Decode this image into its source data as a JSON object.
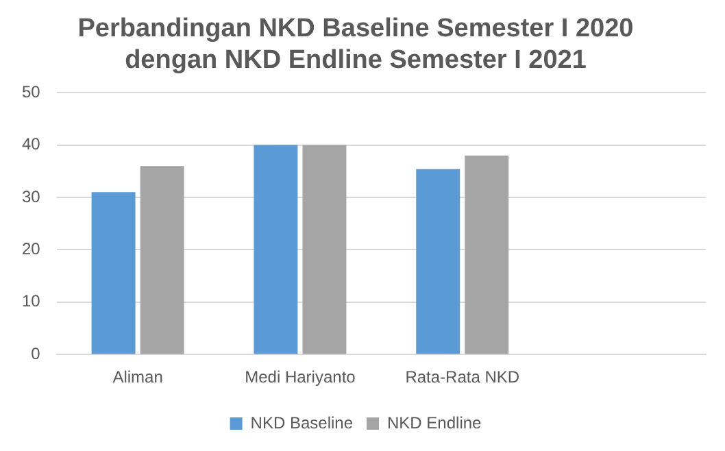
{
  "chart_data": {
    "type": "bar",
    "title": [
      "Perbandingan NKD Baseline Semester I 2020",
      "dengan NKD Endline Semester I 2021"
    ],
    "categories": [
      "Aliman",
      "Medi Hariyanto",
      "Rata-Rata NKD",
      null
    ],
    "series": [
      {
        "name": "NKD Baseline",
        "color": "#5b9bd5",
        "values": [
          31,
          40,
          35.4,
          null
        ]
      },
      {
        "name": "NKD Endline",
        "color": "#a5a5a5",
        "values": [
          36,
          40,
          38,
          null
        ]
      }
    ],
    "ylim": [
      0,
      50
    ],
    "yticks": [
      0,
      10,
      20,
      30,
      40,
      50
    ],
    "grid": "y",
    "legend": "bottom"
  }
}
